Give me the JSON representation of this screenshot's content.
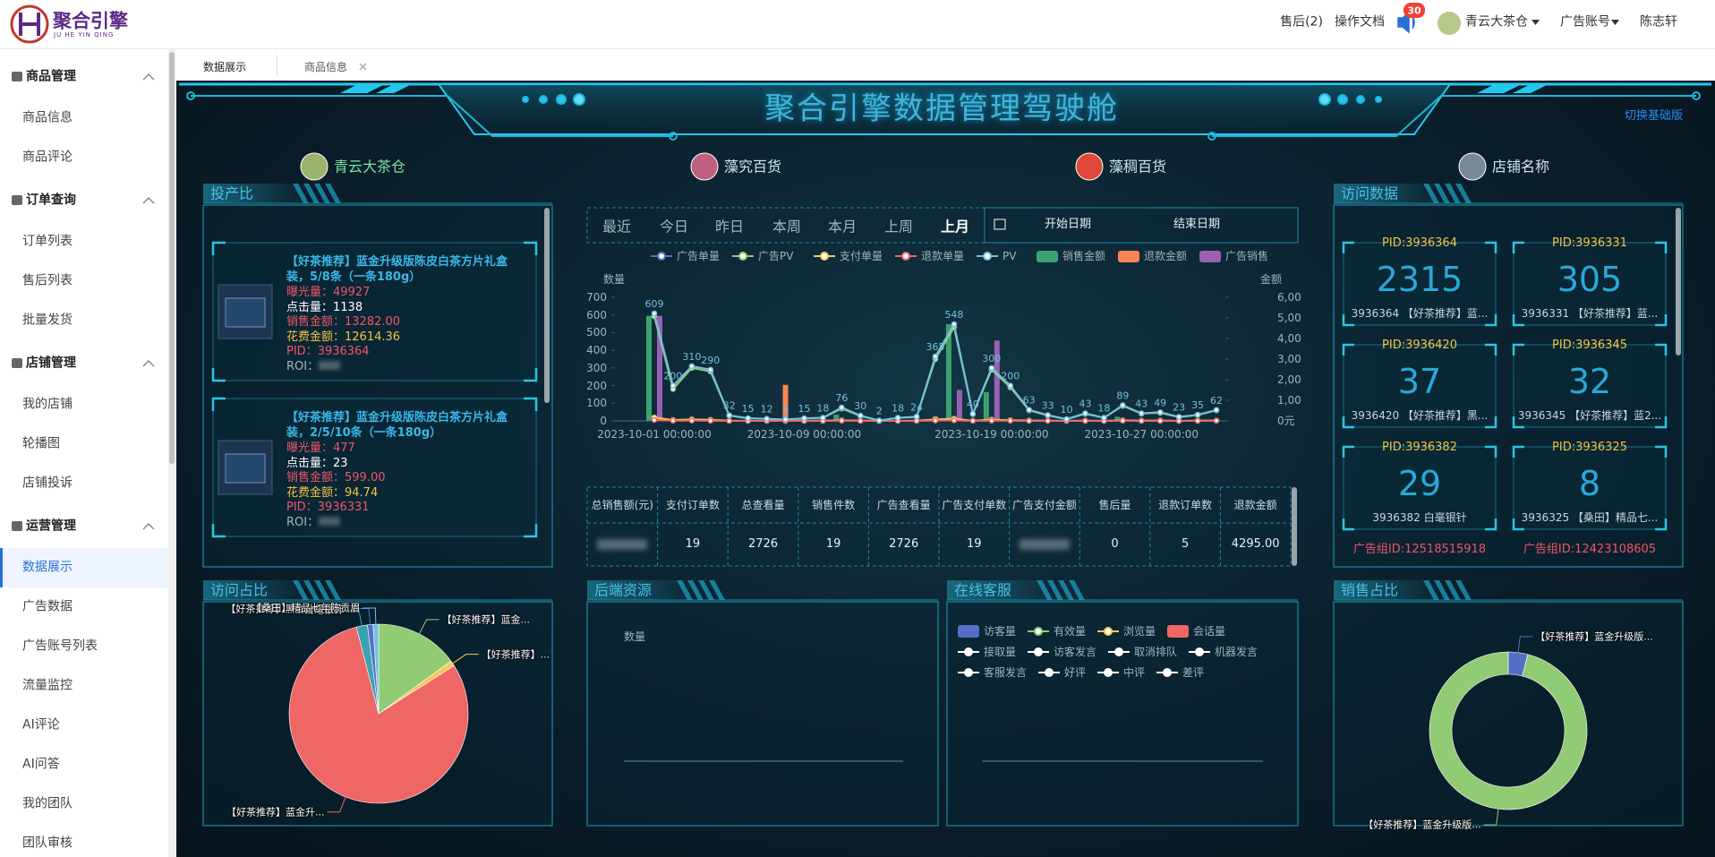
{
  "header": {
    "logo": "聚合引擎",
    "logo_sub": "JU HE YIN QING",
    "after_sales": "售后(2)",
    "docs": "操作文档",
    "notice_count": 30,
    "store": "青云大茶仓",
    "ad_account": "广告账号",
    "user": "陈志轩"
  },
  "sidebar": [
    {
      "title": "商品管理",
      "items": [
        "商品信息",
        "商品评论"
      ]
    },
    {
      "title": "订单查询",
      "items": [
        "订单列表",
        "售后列表",
        "批量发货"
      ]
    },
    {
      "title": "店铺管理",
      "items": [
        "我的店铺",
        "轮播图",
        "店铺投诉"
      ]
    },
    {
      "title": "运营管理",
      "items": [
        "数据展示",
        "广告数据",
        "广告账号列表",
        "流量监控",
        "AI评论",
        "AI问答",
        "我的团队",
        "团队审核"
      ]
    }
  ],
  "tabs": [
    "数据展示",
    "商品信息"
  ],
  "dashboard": {
    "title": "聚合引擎数据管理驾驶舱",
    "switch": "切换基础版",
    "stores": [
      "青云大茶仓",
      "藻究百货",
      "藻稠百货",
      "店铺名称"
    ]
  },
  "roi_panel": {
    "title": "投产比",
    "products": [
      {
        "title": "【好茶推荐】蓝金升级版陈皮白茶方片礼盒装，5/8条（一条180g）",
        "lines": [
          "曝光量：49927",
          "点击量：1138",
          "销售金额：13282.00",
          "花费金额：12614.36",
          "PID：3936364",
          "ROI："
        ]
      },
      {
        "title": "【好茶推荐】蓝金升级版陈皮白茶方片礼盒装，2/5/10条（一条180g）",
        "lines": [
          "曝光量：477",
          "点击量：23",
          "销售金额：599.00",
          "花费金额：94.74",
          "PID：3936331",
          "ROI："
        ]
      }
    ]
  },
  "date_ranges": [
    "最近",
    "今日",
    "昨日",
    "本周",
    "本月",
    "上周",
    "上月"
  ],
  "date_picker": {
    "start": "开始日期",
    "end": "结束日期"
  },
  "summary_table": {
    "headers": [
      "总销售额(元)",
      "支付订单数",
      "总查看量",
      "销售件数",
      "广告查看量",
      "广告支付单数",
      "广告支付金额",
      "售后量",
      "退款订单数",
      "退款金额"
    ],
    "values": [
      null,
      "19",
      "2726",
      "19",
      "2726",
      "19",
      null,
      "0",
      "5",
      "4295.00"
    ]
  },
  "visit_panel": {
    "title": "访问数据",
    "cards": [
      {
        "pid": "PID:3936364",
        "value": 2315,
        "desc": "3936364 【好茶推荐】蓝..."
      },
      {
        "pid": "PID:3936331",
        "value": 305,
        "desc": "3936331 【好茶推荐】蓝..."
      },
      {
        "pid": "PID:3936420",
        "value": 37,
        "desc": "3936420 【好茶推荐】黑..."
      },
      {
        "pid": "PID:3936345",
        "value": 32,
        "desc": "3936345 【好茶推荐】蓝2..."
      },
      {
        "pid": "PID:3936382",
        "value": 29,
        "desc": "3936382 白毫银针"
      },
      {
        "pid": "PID:3936325",
        "value": 8,
        "desc": "3936325 【桑田】精品七..."
      }
    ],
    "ad_groups": [
      "广告组ID:12518515918",
      "广告组ID:12423108605"
    ]
  },
  "visit_share_panel": {
    "title": "访问占比"
  },
  "backend_panel": {
    "title": "后端资源",
    "axis": "数量"
  },
  "service_panel": {
    "title": "在线客服",
    "legend": [
      {
        "name": "访客量",
        "color": "#5470c6",
        "shape": "rect"
      },
      {
        "name": "有效量",
        "color": "#91cc75",
        "shape": "line"
      },
      {
        "name": "浏览量",
        "color": "#fac858",
        "shape": "line"
      },
      {
        "name": "会话量",
        "color": "#ee6666",
        "shape": "rect"
      },
      {
        "name": "接取量",
        "color": "#ffffff",
        "shape": "line"
      },
      {
        "name": "访客发言",
        "color": "#ffffff",
        "shape": "line"
      },
      {
        "name": "取消排队",
        "color": "#ffffff",
        "shape": "line"
      },
      {
        "name": "机器发言",
        "color": "#ffffff",
        "shape": "line"
      },
      {
        "name": "客服发言",
        "color": "#ffffff",
        "shape": "line"
      },
      {
        "name": "好评",
        "color": "#ffffff",
        "shape": "line"
      },
      {
        "name": "中评",
        "color": "#ffffff",
        "shape": "line"
      },
      {
        "name": "差评",
        "color": "#ffffff",
        "shape": "line"
      }
    ]
  },
  "sales_share_panel": {
    "title": "销售占比"
  },
  "chart_data": [
    {
      "type": "line",
      "ylabel": "数量",
      "y2label": "金额",
      "categories": [
        "2023-10-01 00:00:00",
        null,
        null,
        null,
        null,
        null,
        null,
        null,
        "2023-10-09 00:00:00",
        null,
        null,
        null,
        null,
        null,
        null,
        null,
        null,
        null,
        "2023-10-19 00:00:00",
        null,
        null,
        null,
        null,
        null,
        null,
        null,
        "2023-10-27 00:00:00",
        null,
        null,
        null,
        null
      ],
      "ylim": [
        0,
        700
      ],
      "yticks": [
        0,
        100,
        200,
        300,
        400,
        500,
        600,
        700
      ],
      "y2lim": [
        0,
        6000
      ],
      "y2ticks": [
        {
          "value": 0,
          "label": "0元"
        },
        {
          "value": 1000,
          "label": "1,00"
        },
        {
          "value": 2000,
          "label": "2,00"
        },
        {
          "value": 3000,
          "label": "3,00"
        },
        {
          "value": 4000,
          "label": "4,00"
        },
        {
          "value": 5000,
          "label": "5,00"
        },
        {
          "value": 6000,
          "label": "6,00"
        }
      ],
      "grid": false,
      "series": [
        {
          "name": "广告单量",
          "color": "#5470c6",
          "kind": "line",
          "values": [
            7,
            2,
            3,
            1,
            0,
            0,
            0,
            0,
            0,
            1,
            2,
            1,
            0,
            0,
            1,
            3,
            7,
            1,
            5,
            3,
            1,
            0,
            0,
            1,
            0,
            2,
            1,
            1,
            0,
            1,
            1
          ]
        },
        {
          "name": "广告PV",
          "color": "#91cc75",
          "kind": "line",
          "values": [
            592,
            180,
            300,
            280,
            30,
            14,
            11,
            7,
            14,
            17,
            70,
            28,
            2,
            17,
            22,
            350,
            530,
            38,
            290,
            190,
            60,
            31,
            9,
            40,
            17,
            85,
            41,
            46,
            21,
            33,
            60
          ]
        },
        {
          "name": "支付单量",
          "color": "#fac858",
          "kind": "line",
          "values": [
            19,
            5,
            8,
            6,
            1,
            0,
            0,
            0,
            1,
            1,
            3,
            1,
            0,
            0,
            1,
            8,
            12,
            1,
            7,
            4,
            2,
            1,
            0,
            1,
            0,
            3,
            1,
            2,
            0,
            1,
            2
          ]
        },
        {
          "name": "退款单量",
          "color": "#ee6666",
          "kind": "line",
          "values": [
            5,
            1,
            2,
            1,
            0,
            0,
            0,
            0,
            0,
            0,
            1,
            0,
            0,
            0,
            0,
            2,
            3,
            0,
            1,
            1,
            0,
            0,
            0,
            0,
            0,
            1,
            0,
            0,
            0,
            0,
            1
          ]
        },
        {
          "name": "PV",
          "color": "#73c0de",
          "kind": "line",
          "labels": true,
          "values": [
            609,
            200,
            310,
            290,
            32,
            15,
            12,
            8,
            15,
            18,
            76,
            30,
            2,
            18,
            24,
            365,
            548,
            40,
            300,
            200,
            63,
            33,
            10,
            43,
            18,
            89,
            43,
            49,
            23,
            35,
            62
          ]
        },
        {
          "name": "销售金额",
          "color": "#3ba272",
          "kind": "bar",
          "axis": "y2",
          "values": [
            5100,
            0,
            0,
            0,
            0,
            0,
            0,
            0,
            0,
            0,
            300,
            0,
            0,
            0,
            0,
            0,
            4700,
            0,
            1400,
            0,
            0,
            0,
            0,
            0,
            0,
            200,
            0,
            0,
            0,
            0,
            0
          ]
        },
        {
          "name": "退款金额",
          "color": "#fc8452",
          "kind": "bar",
          "axis": "y2",
          "values": [
            0,
            0,
            0,
            0,
            0,
            0,
            0,
            1750,
            0,
            0,
            0,
            0,
            0,
            0,
            0,
            200,
            0,
            0,
            0,
            0,
            0,
            0,
            0,
            0,
            0,
            0,
            0,
            0,
            0,
            0,
            0
          ]
        },
        {
          "name": "广告销售",
          "color": "#9a60b4",
          "kind": "bar",
          "axis": "y2",
          "values": [
            5100,
            0,
            0,
            0,
            0,
            0,
            0,
            0,
            0,
            0,
            0,
            0,
            0,
            0,
            0,
            0,
            1500,
            0,
            3900,
            0,
            0,
            0,
            0,
            0,
            0,
            0,
            0,
            0,
            0,
            0,
            0
          ]
        }
      ]
    },
    {
      "type": "pie",
      "categories": [
        "【好茶推荐】蓝金...",
        "【好茶推荐】...",
        "【好茶推荐】蓝金升...",
        "白毫银针",
        "【好茶推荐】黑金升级版陈...",
        "【桑田】精品七年陈贡眉"
      ],
      "values": [
        15,
        1,
        80,
        2,
        1,
        1
      ],
      "colors": [
        "#91cc75",
        "#fac858",
        "#ee6666",
        "#3ba2b0",
        "#5470c6",
        "#73c0de"
      ]
    },
    {
      "type": "donut",
      "categories": [
        "【好茶推荐】蓝金升级版...",
        "【好茶推荐】蓝金升级版..."
      ],
      "values": [
        4,
        96
      ],
      "colors": [
        "#5470c6",
        "#91cc75"
      ]
    }
  ]
}
